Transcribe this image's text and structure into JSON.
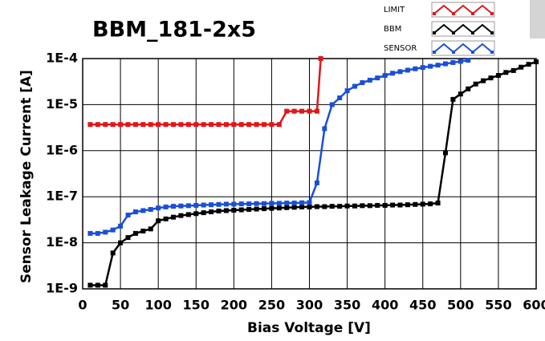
{
  "chart_data": {
    "type": "line",
    "title": "BBM_181-2x5",
    "xlabel": "Bias Voltage [V]",
    "ylabel": "Sensor Leakage Current [A]",
    "xlim": [
      0,
      600
    ],
    "xticks": [
      0,
      50,
      100,
      150,
      200,
      250,
      300,
      350,
      400,
      450,
      500,
      550,
      600
    ],
    "ylim": [
      1e-09,
      0.0001
    ],
    "log_y": true,
    "yticks": [
      {
        "value": 1e-09,
        "label": "1E-9"
      },
      {
        "value": 1e-08,
        "label": "1E-8"
      },
      {
        "value": 1e-07,
        "label": "1E-7"
      },
      {
        "value": 1e-06,
        "label": "1E-6"
      },
      {
        "value": 1e-05,
        "label": "1E-5"
      },
      {
        "value": 0.0001,
        "label": "1E-4"
      }
    ],
    "grid": true,
    "legend": "top-right",
    "series": [
      {
        "name": "LIMIT",
        "color": "#e0161b",
        "x": [
          10,
          20,
          30,
          40,
          50,
          60,
          70,
          80,
          90,
          100,
          110,
          120,
          130,
          140,
          150,
          160,
          170,
          180,
          190,
          200,
          210,
          220,
          230,
          240,
          250,
          260,
          270,
          280,
          290,
          300,
          310,
          315
        ],
        "values": [
          3.7e-06,
          3.7e-06,
          3.7e-06,
          3.7e-06,
          3.7e-06,
          3.7e-06,
          3.7e-06,
          3.7e-06,
          3.7e-06,
          3.7e-06,
          3.7e-06,
          3.7e-06,
          3.7e-06,
          3.7e-06,
          3.7e-06,
          3.7e-06,
          3.7e-06,
          3.7e-06,
          3.7e-06,
          3.7e-06,
          3.7e-06,
          3.7e-06,
          3.7e-06,
          3.7e-06,
          3.7e-06,
          3.7e-06,
          7.2e-06,
          7.2e-06,
          7.2e-06,
          7.2e-06,
          7.2e-06,
          0.0001
        ]
      },
      {
        "name": "BBM",
        "color": "#000000",
        "x": [
          10,
          20,
          30,
          40,
          50,
          60,
          70,
          80,
          90,
          100,
          110,
          120,
          130,
          140,
          150,
          160,
          170,
          180,
          190,
          200,
          210,
          220,
          230,
          240,
          250,
          260,
          270,
          280,
          290,
          300,
          310,
          320,
          330,
          340,
          350,
          360,
          370,
          380,
          390,
          400,
          410,
          420,
          430,
          440,
          450,
          460,
          470,
          480,
          490,
          500,
          510,
          520,
          530,
          540,
          550,
          560,
          570,
          580,
          590,
          600
        ],
        "values": [
          1.2e-09,
          1.2e-09,
          1.2e-09,
          6e-09,
          1e-08,
          1.3e-08,
          1.6e-08,
          1.8e-08,
          2e-08,
          3e-08,
          3.3e-08,
          3.6e-08,
          3.9e-08,
          4.1e-08,
          4.3e-08,
          4.5e-08,
          4.7e-08,
          4.9e-08,
          5e-08,
          5.1e-08,
          5.2e-08,
          5.3e-08,
          5.4e-08,
          5.5e-08,
          5.6e-08,
          5.7e-08,
          5.8e-08,
          5.9e-08,
          6e-08,
          6e-08,
          6.1e-08,
          6.1e-08,
          6.2e-08,
          6.2e-08,
          6.3e-08,
          6.3e-08,
          6.4e-08,
          6.4e-08,
          6.5e-08,
          6.5e-08,
          6.6e-08,
          6.6e-08,
          6.7e-08,
          6.8e-08,
          6.9e-08,
          7e-08,
          7.3e-08,
          9e-07,
          1.3e-05,
          1.7e-05,
          2.2e-05,
          2.8e-05,
          3.3e-05,
          3.8e-05,
          4.3e-05,
          5e-05,
          5.5e-05,
          6.5e-05,
          7.5e-05,
          8.5e-05
        ]
      },
      {
        "name": "SENSOR",
        "color": "#1a4fd6",
        "x": [
          10,
          20,
          30,
          40,
          50,
          60,
          70,
          80,
          90,
          100,
          110,
          120,
          130,
          140,
          150,
          160,
          170,
          180,
          190,
          200,
          210,
          220,
          230,
          240,
          250,
          260,
          270,
          280,
          290,
          300,
          310,
          320,
          330,
          340,
          350,
          360,
          370,
          380,
          390,
          400,
          410,
          420,
          430,
          440,
          450,
          460,
          470,
          480,
          490,
          500,
          510
        ],
        "values": [
          1.6e-08,
          1.6e-08,
          1.7e-08,
          1.9e-08,
          2.3e-08,
          4e-08,
          4.7e-08,
          5e-08,
          5.3e-08,
          5.7e-08,
          6e-08,
          6.2e-08,
          6.3e-08,
          6.4e-08,
          6.5e-08,
          6.6e-08,
          6.7e-08,
          6.8e-08,
          6.9e-08,
          6.9e-08,
          7e-08,
          7e-08,
          7.1e-08,
          7.1e-08,
          7.2e-08,
          7.2e-08,
          7.3e-08,
          7.3e-08,
          7.4e-08,
          7.5e-08,
          2e-07,
          3e-06,
          1e-05,
          1.4e-05,
          2e-05,
          2.5e-05,
          3e-05,
          3.4e-05,
          3.8e-05,
          4.3e-05,
          4.8e-05,
          5.2e-05,
          5.6e-05,
          6e-05,
          6.4e-05,
          6.8e-05,
          7.2e-05,
          7.7e-05,
          8.2e-05,
          8.7e-05,
          9.2e-05
        ]
      }
    ]
  }
}
